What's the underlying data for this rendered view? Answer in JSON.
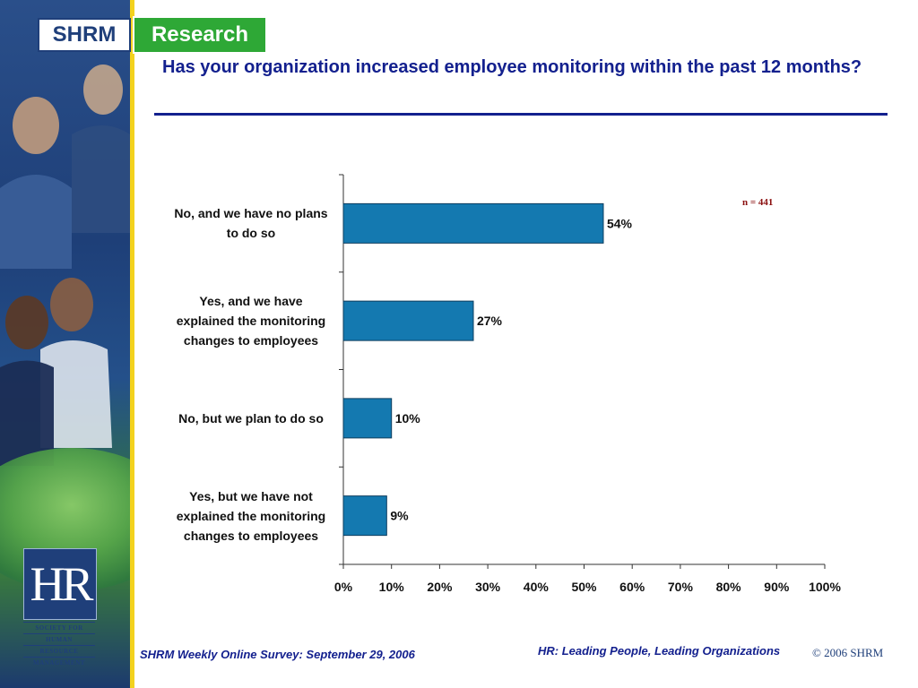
{
  "header": {
    "brand_left": "SHRM",
    "brand_right": "Research",
    "title": "Has your organization increased employee monitoring within the past 12 months?"
  },
  "sidebar": {
    "logo_text": "HR",
    "society_lines": [
      "SOCIETY FOR",
      "HUMAN",
      "RESOURCE",
      "MANAGEMENT"
    ]
  },
  "note": "n = 441",
  "chart_data": {
    "type": "bar",
    "orientation": "horizontal",
    "categories": [
      [
        "No, and we have no plans",
        "to do so"
      ],
      [
        "Yes, and we have",
        "explained the monitoring",
        "changes to employees"
      ],
      [
        "No, but we plan to do so"
      ],
      [
        "Yes, but we have not",
        "explained the monitoring",
        "changes to employees"
      ]
    ],
    "values": [
      54,
      27,
      10,
      9
    ],
    "value_labels": [
      "54%",
      "27%",
      "10%",
      "9%"
    ],
    "xlim": [
      0,
      100
    ],
    "x_ticks": [
      "0%",
      "10%",
      "20%",
      "30%",
      "40%",
      "50%",
      "60%",
      "70%",
      "80%",
      "90%",
      "100%"
    ],
    "bar_color": "#1479b0",
    "grid": false
  },
  "footer": {
    "source": "SHRM Weekly Online Survey: September 29, 2006",
    "tagline": "HR: Leading People, Leading Organizations",
    "copyright": "© 2006 SHRM"
  }
}
